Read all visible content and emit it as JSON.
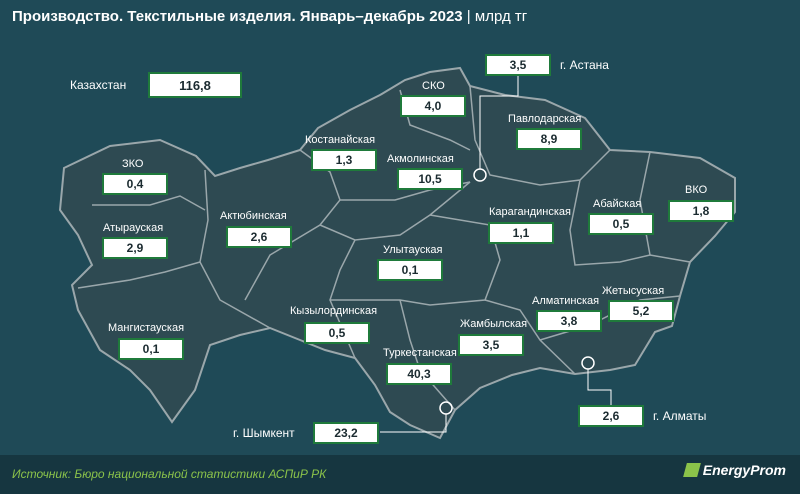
{
  "title": "Производство. Текстильные изделия. Январь–декабрь 2023",
  "unit": "млрд тг",
  "source": "Источник: Бюро национальной статистики АСПиР РК",
  "logo": "EnergyProm",
  "colors": {
    "background": "#1f4a57",
    "map_fill": "#2e4a52",
    "border": "#9aa7ab",
    "value_border": "#1f7a3b"
  },
  "total": {
    "label": "Казахстан",
    "value": "116,8"
  },
  "regions": [
    {
      "id": "zko",
      "label": "ЗКО",
      "value": "0,4"
    },
    {
      "id": "atyrau",
      "label": "Атырауская",
      "value": "2,9"
    },
    {
      "id": "mangistau",
      "label": "Мангистауская",
      "value": "0,1"
    },
    {
      "id": "aktobe",
      "label": "Актюбинская",
      "value": "2,6"
    },
    {
      "id": "kostanay",
      "label": "Костанайская",
      "value": "1,3"
    },
    {
      "id": "sko",
      "label": "СКО",
      "value": "4,0"
    },
    {
      "id": "astana",
      "label": "г. Астана",
      "value": "3,5"
    },
    {
      "id": "akmola",
      "label": "Акмолинская",
      "value": "10,5"
    },
    {
      "id": "pavlodar",
      "label": "Павлодарская",
      "value": "8,9"
    },
    {
      "id": "vko",
      "label": "ВКО",
      "value": "1,8"
    },
    {
      "id": "abai",
      "label": "Абайская",
      "value": "0,5"
    },
    {
      "id": "karaganda",
      "label": "Карагандинская",
      "value": "1,1"
    },
    {
      "id": "ulytau",
      "label": "Улытауская",
      "value": "0,1"
    },
    {
      "id": "kyzylorda",
      "label": "Кызылординская",
      "value": "0,5"
    },
    {
      "id": "turkestan",
      "label": "Туркестанская",
      "value": "40,3"
    },
    {
      "id": "zhambyl",
      "label": "Жамбылская",
      "value": "3,5"
    },
    {
      "id": "almaty_obl",
      "label": "Алматинская",
      "value": "3,8"
    },
    {
      "id": "zhetysu",
      "label": "Жетысуская",
      "value": "5,2"
    },
    {
      "id": "almaty",
      "label": "г. Алматы",
      "value": "2,6"
    },
    {
      "id": "shymkent",
      "label": "г. Шымкент",
      "value": "23,2"
    }
  ]
}
